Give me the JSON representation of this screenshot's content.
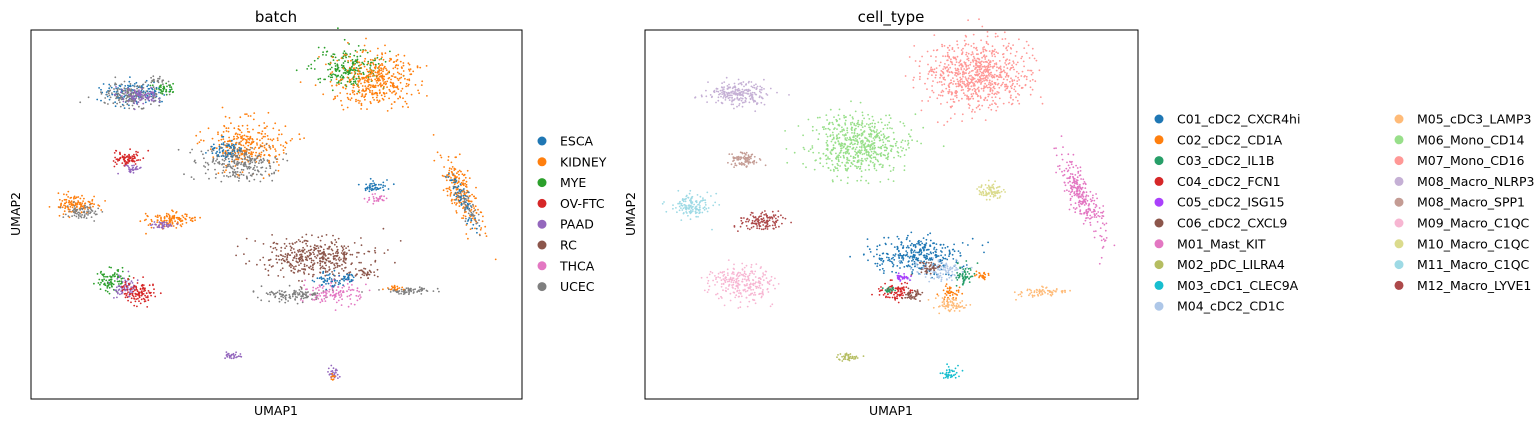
{
  "chart_data": [
    {
      "type": "scatter",
      "title": "batch",
      "xlabel": "UMAP1",
      "ylabel": "UMAP2",
      "xticks": false,
      "yticks": false,
      "grid": false,
      "legend_placement": "right",
      "series": [
        {
          "name": "ESCA",
          "color": "#1f77b4"
        },
        {
          "name": "KIDNEY",
          "color": "#ff7f0e"
        },
        {
          "name": "MYE",
          "color": "#2ca02c"
        },
        {
          "name": "OV-FTC",
          "color": "#d62728"
        },
        {
          "name": "PAAD",
          "color": "#9467bd"
        },
        {
          "name": "RC",
          "color": "#8c564b"
        },
        {
          "name": "THCA",
          "color": "#e377c2"
        },
        {
          "name": "UCEC",
          "color": "#7f7f7f"
        }
      ]
    },
    {
      "type": "scatter",
      "title": "cell_type",
      "xlabel": "UMAP1",
      "ylabel": "UMAP2",
      "xticks": false,
      "yticks": false,
      "grid": false,
      "legend_placement": "right",
      "series": [
        {
          "name": "C01_cDC2_CXCR4hi",
          "color": "#1f77b4"
        },
        {
          "name": "C02_cDC2_CD1A",
          "color": "#ff7f0e"
        },
        {
          "name": "C03_cDC2_IL1B",
          "color": "#279e68"
        },
        {
          "name": "C04_cDC2_FCN1",
          "color": "#d62728"
        },
        {
          "name": "C05_cDC2_ISG15",
          "color": "#aa40fc"
        },
        {
          "name": "C06_cDC2_CXCL9",
          "color": "#8c564b"
        },
        {
          "name": "M01_Mast_KIT",
          "color": "#e377c2"
        },
        {
          "name": "M02_pDC_LILRA4",
          "color": "#b5bd61"
        },
        {
          "name": "M03_cDC1_CLEC9A",
          "color": "#17becf"
        },
        {
          "name": "M04_cDC2_CD1C",
          "color": "#aec7e8"
        },
        {
          "name": "M05_cDC3_LAMP3",
          "color": "#ffbb78"
        },
        {
          "name": "M06_Mono_CD14",
          "color": "#98df8a"
        },
        {
          "name": "M07_Mono_CD16",
          "color": "#ff9896"
        },
        {
          "name": "M08_Macro_NLRP3",
          "color": "#c5b0d5"
        },
        {
          "name": "M08_Macro_SPP1",
          "color": "#c49c94"
        },
        {
          "name": "M09_Macro_C1QC",
          "color": "#f7b6d2"
        },
        {
          "name": "M10_Macro_C1QC",
          "color": "#dbdb8d"
        },
        {
          "name": "M11_Macro_C1QC",
          "color": "#9edae5"
        },
        {
          "name": "M12_Macro_LYVE1",
          "color": "#ad494a"
        }
      ]
    }
  ]
}
